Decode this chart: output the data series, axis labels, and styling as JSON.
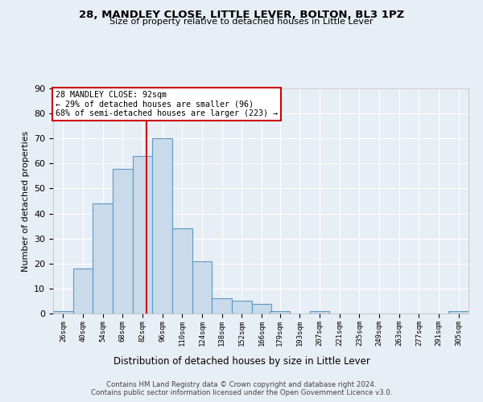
{
  "title": "28, MANDLEY CLOSE, LITTLE LEVER, BOLTON, BL3 1PZ",
  "subtitle": "Size of property relative to detached houses in Little Lever",
  "xlabel": "Distribution of detached houses by size in Little Lever",
  "ylabel": "Number of detached properties",
  "bin_labels": [
    "26sqm",
    "40sqm",
    "54sqm",
    "68sqm",
    "82sqm",
    "96sqm",
    "110sqm",
    "124sqm",
    "138sqm",
    "152sqm",
    "166sqm",
    "179sqm",
    "193sqm",
    "207sqm",
    "221sqm",
    "235sqm",
    "249sqm",
    "263sqm",
    "277sqm",
    "291sqm",
    "305sqm"
  ],
  "bin_edges": [
    26,
    40,
    54,
    68,
    82,
    96,
    110,
    124,
    138,
    152,
    166,
    179,
    193,
    207,
    221,
    235,
    249,
    263,
    277,
    291,
    305
  ],
  "bar_heights": [
    1,
    18,
    44,
    58,
    63,
    70,
    34,
    21,
    6,
    5,
    4,
    1,
    0,
    1,
    0,
    0,
    0,
    0,
    0,
    0,
    1
  ],
  "bar_color": "#c9daea",
  "bar_edge_color": "#5a9ac5",
  "property_size": 92,
  "vline_color": "#cc0000",
  "annotation_text": "28 MANDLEY CLOSE: 92sqm\n← 29% of detached houses are smaller (96)\n68% of semi-detached houses are larger (223) →",
  "annotation_box_color": "#ffffff",
  "annotation_box_edge_color": "#cc0000",
  "ylim": [
    0,
    90
  ],
  "yticks": [
    0,
    10,
    20,
    30,
    40,
    50,
    60,
    70,
    80,
    90
  ],
  "bg_color": "#e8eef5",
  "grid_color": "#ffffff",
  "footer_line1": "Contains HM Land Registry data © Crown copyright and database right 2024.",
  "footer_line2": "Contains public sector information licensed under the Open Government Licence v3.0."
}
